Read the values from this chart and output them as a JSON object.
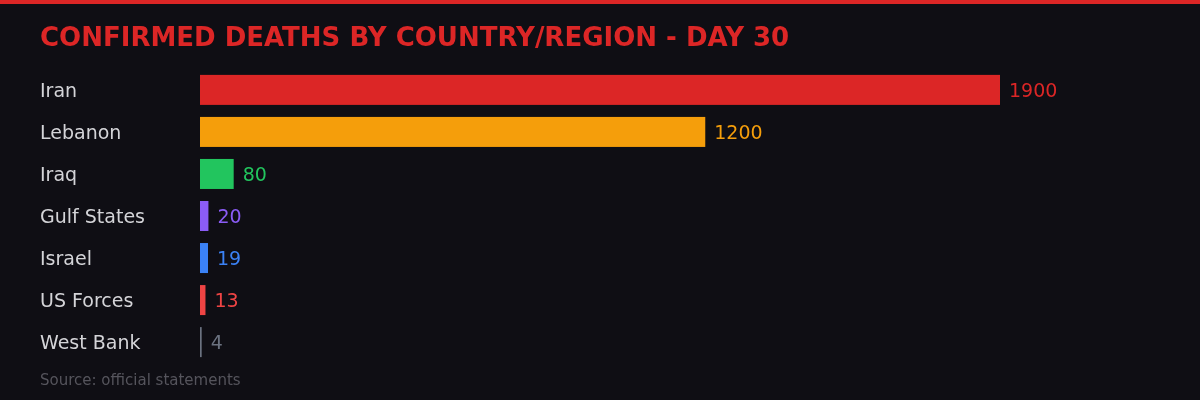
{
  "chart_data": {
    "type": "bar",
    "orientation": "horizontal",
    "title": "CONFIRMED DEATHS BY COUNTRY/REGION - DAY 30",
    "categories": [
      "Iran",
      "Lebanon",
      "Iraq",
      "Gulf States",
      "Israel",
      "US Forces",
      "West Bank"
    ],
    "values": [
      1900,
      1200,
      80,
      20,
      19,
      13,
      4
    ],
    "colors": [
      "#dc2626",
      "#f59e0b",
      "#22c55e",
      "#8b5cf6",
      "#3b82f6",
      "#ef4444",
      "#6b7280"
    ],
    "data_labels": true,
    "annotations": [
      "Source: official statements"
    ]
  }
}
